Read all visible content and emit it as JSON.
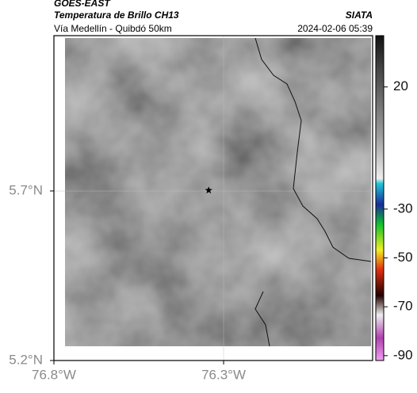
{
  "header": {
    "source": "GOES-EAST",
    "title": "Temperatura de Brillo CH13",
    "subtitle": "Vía Medellín - Quibdó 50km",
    "agency": "SIATA",
    "datetime": "2024-02-06 05:39"
  },
  "map": {
    "xlim": [
      -76.8,
      -75.861
    ],
    "ylim": [
      5.2,
      6.158
    ],
    "xticks": [
      {
        "value": -76.8,
        "label": "76.8°W"
      },
      {
        "value": -76.3,
        "label": "76.3°W"
      }
    ],
    "yticks": [
      {
        "value": 5.2,
        "label": "5.2°N"
      },
      {
        "value": 5.7,
        "label": "5.7°N"
      }
    ],
    "marker": {
      "lon": -76.344,
      "lat": 5.702
    }
  },
  "colorbar": {
    "clim": [
      -92,
      41
    ],
    "ticks": [
      20,
      -30,
      -50,
      -70,
      -90
    ]
  }
}
